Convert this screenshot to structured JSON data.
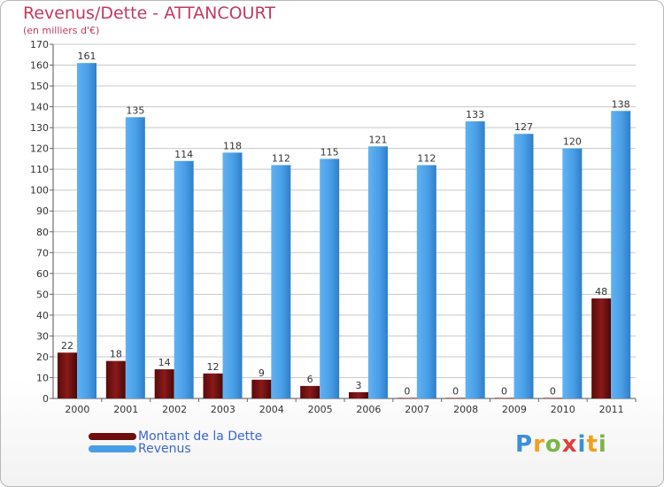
{
  "header": {
    "title": "Revenus/Dette - ATTANCOURT",
    "subtitle": "(en milliers d'€)"
  },
  "colors": {
    "title": "#c4395f",
    "dette": "#7a1010",
    "revenus": "#4a9ee6",
    "legend_text": "#3d66cc",
    "grid": "#c8c8c8"
  },
  "chart_data": {
    "type": "bar",
    "title": "Revenus/Dette - ATTANCOURT",
    "ylabel": "(en milliers d'€)",
    "xlabel": "",
    "ylim": [
      0,
      170
    ],
    "yticks": [
      0,
      10,
      20,
      30,
      40,
      50,
      60,
      70,
      80,
      90,
      100,
      110,
      120,
      130,
      140,
      150,
      160,
      170
    ],
    "grid": true,
    "categories": [
      "2000",
      "2001",
      "2002",
      "2003",
      "2004",
      "2005",
      "2006",
      "2007",
      "2008",
      "2009",
      "2010",
      "2011"
    ],
    "series": [
      {
        "name": "Montant de la Dette",
        "values": [
          22,
          18,
          14,
          12,
          9,
          6,
          3,
          0,
          0,
          0,
          0,
          48
        ]
      },
      {
        "name": "Revenus",
        "values": [
          161,
          135,
          114,
          118,
          112,
          115,
          121,
          112,
          133,
          127,
          120,
          138
        ]
      }
    ],
    "legend_position": "bottom-left"
  },
  "legend": {
    "items": [
      {
        "label": "Montant de la Dette",
        "color": "#7a1010"
      },
      {
        "label": "Revenus",
        "color": "#4a9ee6"
      }
    ]
  },
  "logo": {
    "text": "Proxiti",
    "letters": [
      {
        "char": "P",
        "color": "#3a8fd8"
      },
      {
        "char": "r",
        "color": "#f0a020"
      },
      {
        "char": "o",
        "color": "#7ab648"
      },
      {
        "char": "x",
        "color": "#e0403a"
      },
      {
        "char": "i",
        "color": "#3a8fd8"
      },
      {
        "char": "t",
        "color": "#f0a020"
      },
      {
        "char": "i",
        "color": "#7ab648"
      }
    ]
  }
}
